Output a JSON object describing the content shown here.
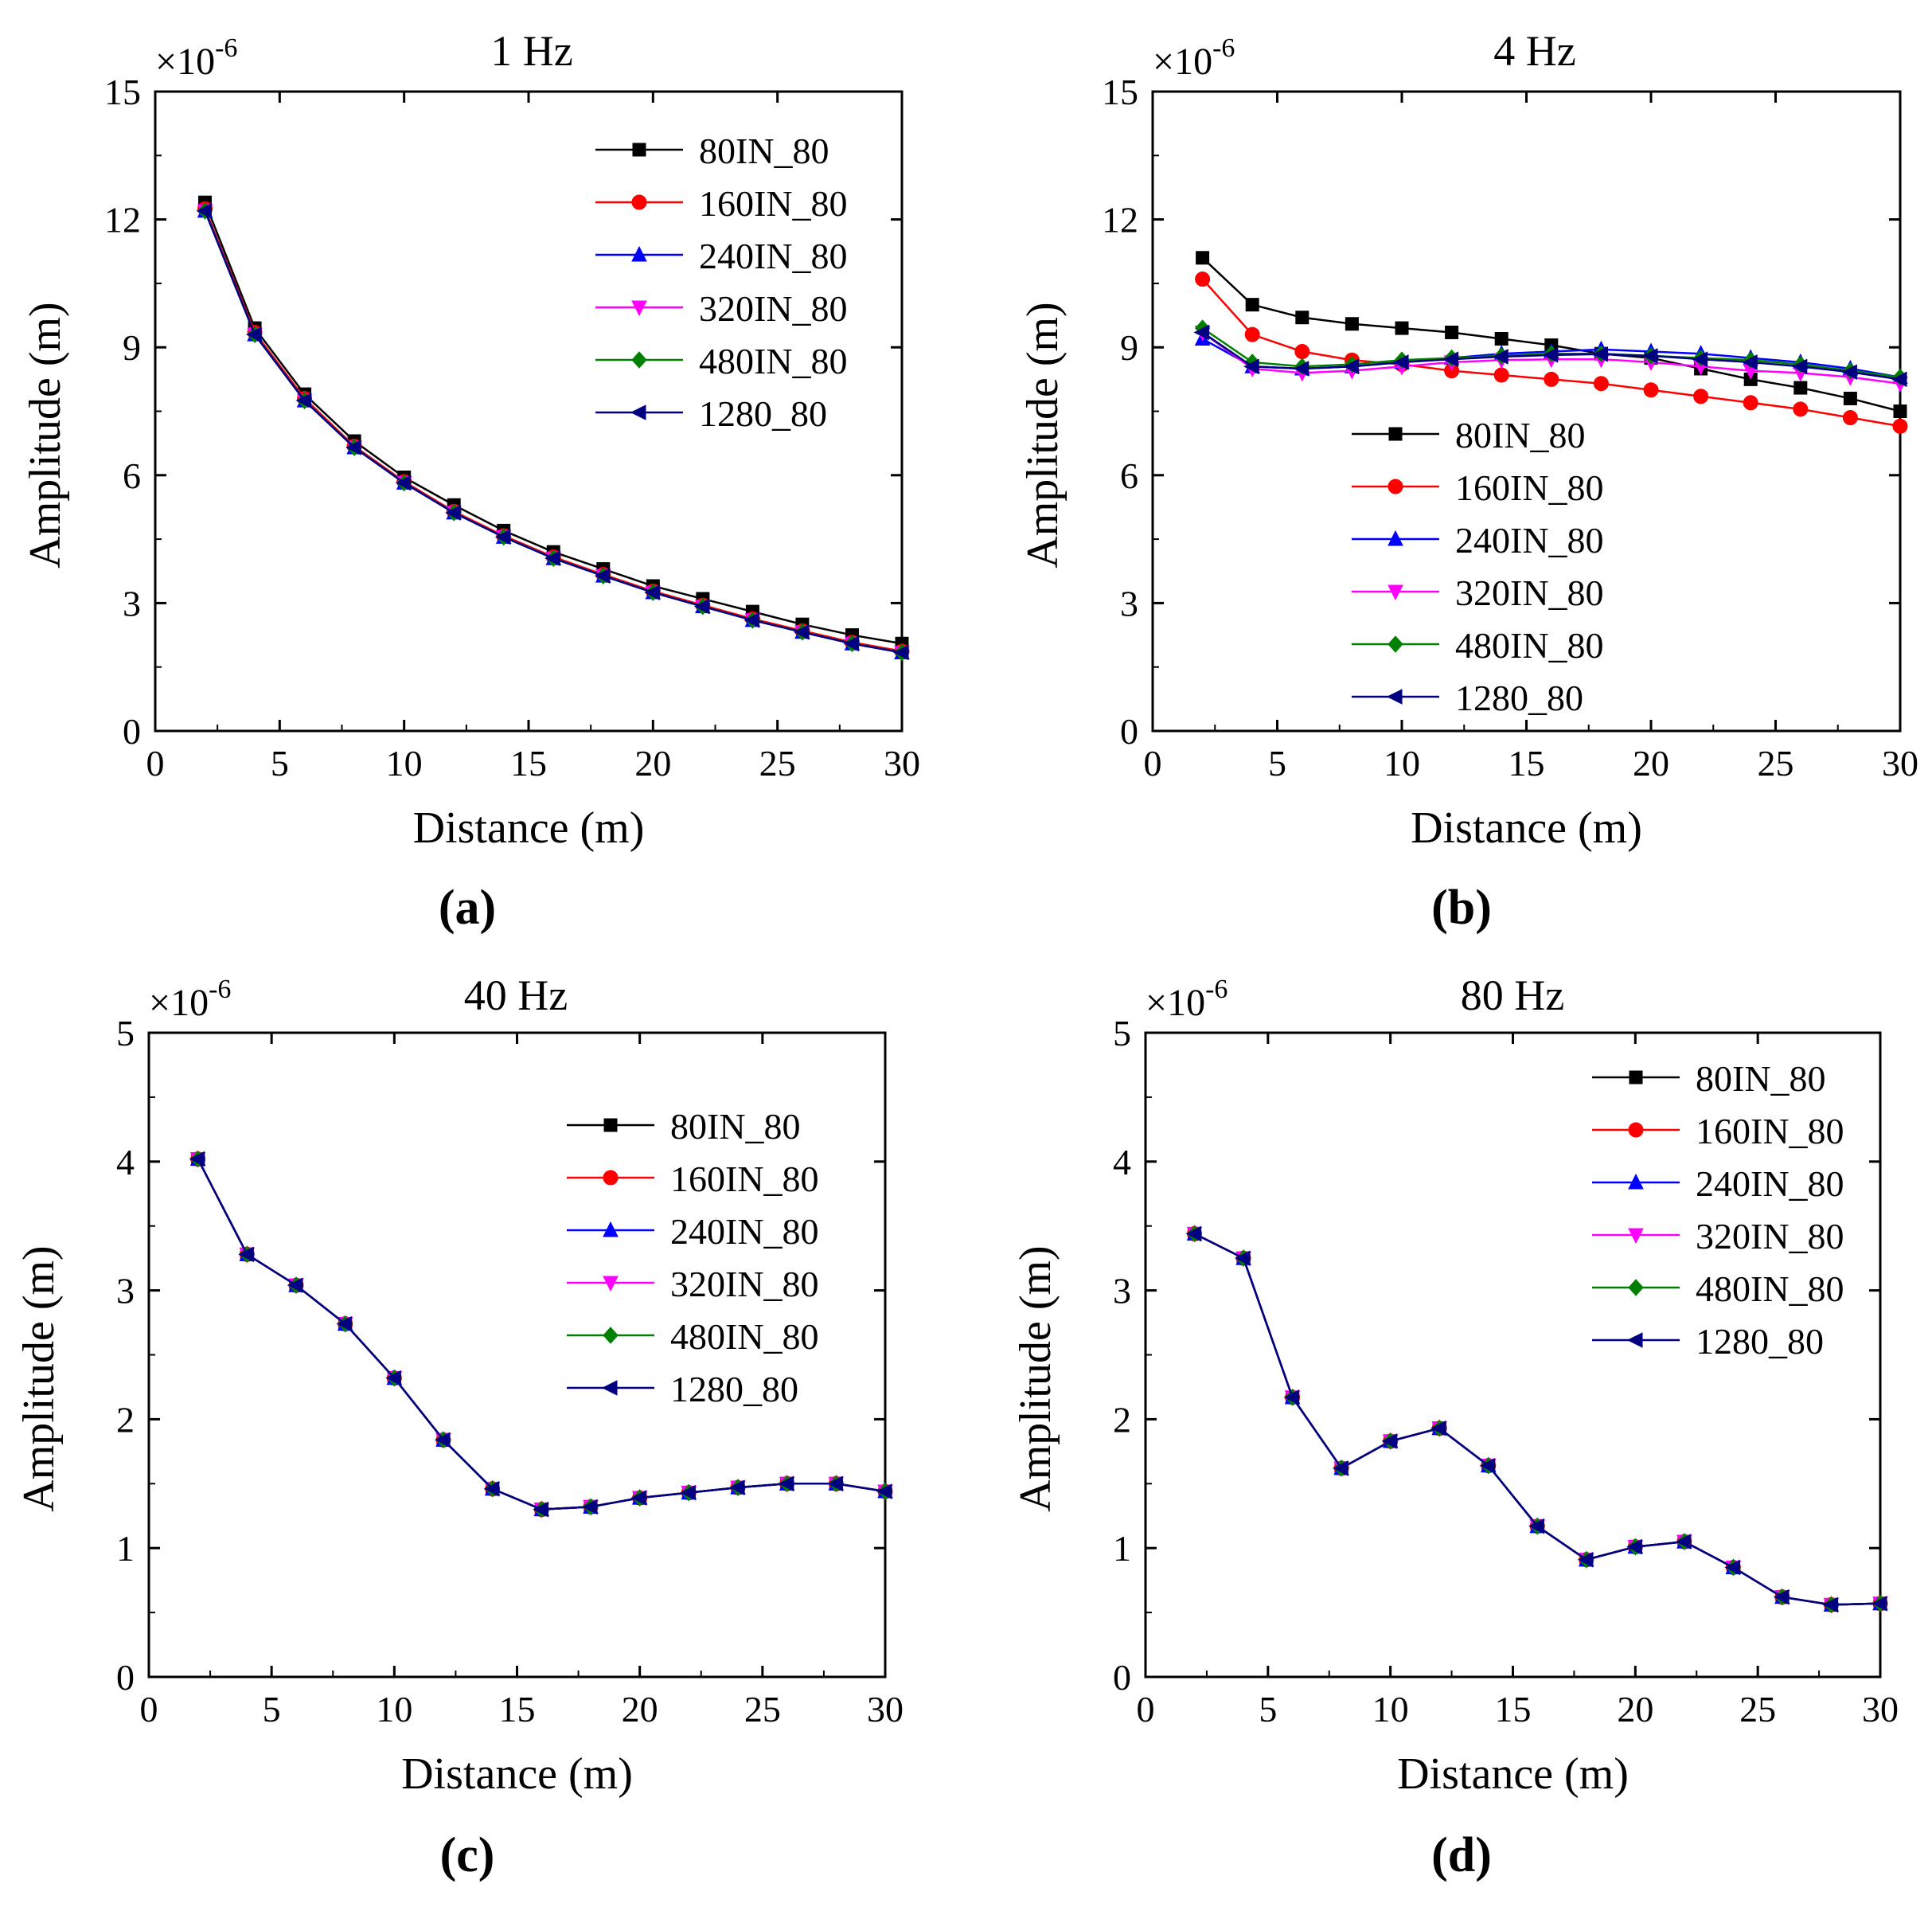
{
  "figure": {
    "panel_labels": [
      "(a)",
      "(b)",
      "(c)",
      "(d)"
    ]
  },
  "colors": {
    "80IN_80": "#000000",
    "160IN_80": "#ff0000",
    "240IN_80": "#0000ff",
    "320IN_80": "#ff00ff",
    "480IN_80": "#008000",
    "1280_80": "#000080"
  },
  "chart_data": [
    {
      "type": "line",
      "panel_label": "(a)",
      "title": "1 Hz",
      "scale_label": "×10",
      "scale_exponent": "-6",
      "xlabel": "Distance (m)",
      "ylabel": "Amplitude (m)",
      "xlim": [
        0,
        30
      ],
      "ylim": [
        0,
        15
      ],
      "xticks": [
        0,
        5,
        10,
        15,
        20,
        25,
        30
      ],
      "yticks": [
        0,
        3,
        6,
        9,
        12,
        15
      ],
      "legend_position": "top-right",
      "x": [
        2,
        4,
        6,
        8,
        10,
        12,
        14,
        16,
        18,
        20,
        22,
        24,
        26,
        28,
        30
      ],
      "series": [
        {
          "name": "80IN_80",
          "marker": "square",
          "values": [
            12.4,
            9.45,
            7.9,
            6.8,
            5.95,
            5.3,
            4.7,
            4.2,
            3.8,
            3.4,
            3.1,
            2.8,
            2.5,
            2.25,
            2.05
          ]
        },
        {
          "name": "160IN_80",
          "marker": "circle",
          "values": [
            12.25,
            9.35,
            7.8,
            6.68,
            5.85,
            5.15,
            4.58,
            4.08,
            3.67,
            3.28,
            2.95,
            2.63,
            2.35,
            2.08,
            1.87
          ]
        },
        {
          "name": "240IN_80",
          "marker": "triangle-up",
          "values": [
            12.2,
            9.3,
            7.75,
            6.65,
            5.82,
            5.12,
            4.55,
            4.05,
            3.64,
            3.25,
            2.92,
            2.6,
            2.32,
            2.05,
            1.84
          ]
        },
        {
          "name": "320IN_80",
          "marker": "triangle-down",
          "values": [
            12.2,
            9.3,
            7.75,
            6.65,
            5.82,
            5.12,
            4.55,
            4.05,
            3.64,
            3.25,
            2.92,
            2.6,
            2.32,
            2.05,
            1.84
          ]
        },
        {
          "name": "480IN_80",
          "marker": "diamond",
          "values": [
            12.2,
            9.3,
            7.75,
            6.65,
            5.82,
            5.12,
            4.55,
            4.05,
            3.64,
            3.25,
            2.92,
            2.6,
            2.32,
            2.05,
            1.84
          ]
        },
        {
          "name": "1280_80",
          "marker": "triangle-left",
          "values": [
            12.2,
            9.3,
            7.75,
            6.65,
            5.82,
            5.12,
            4.55,
            4.05,
            3.64,
            3.25,
            2.92,
            2.6,
            2.32,
            2.05,
            1.84
          ]
        }
      ]
    },
    {
      "type": "line",
      "panel_label": "(b)",
      "title": "4 Hz",
      "scale_label": "×10",
      "scale_exponent": "-6",
      "xlabel": "Distance (m)",
      "ylabel": "Amplitude (m)",
      "xlim": [
        0,
        30
      ],
      "ylim": [
        0,
        15
      ],
      "xticks": [
        0,
        5,
        10,
        15,
        20,
        25,
        30
      ],
      "yticks": [
        0,
        3,
        6,
        9,
        12,
        15
      ],
      "legend_position": "center-left",
      "x": [
        2,
        4,
        6,
        8,
        10,
        12,
        14,
        16,
        18,
        20,
        22,
        24,
        26,
        28,
        30
      ],
      "series": [
        {
          "name": "80IN_80",
          "marker": "square",
          "values": [
            11.1,
            10.0,
            9.7,
            9.55,
            9.45,
            9.35,
            9.2,
            9.05,
            8.85,
            8.75,
            8.5,
            8.25,
            8.05,
            7.8,
            7.5
          ]
        },
        {
          "name": "160IN_80",
          "marker": "circle",
          "values": [
            10.6,
            9.3,
            8.9,
            8.7,
            8.6,
            8.45,
            8.35,
            8.25,
            8.15,
            8.0,
            7.85,
            7.7,
            7.55,
            7.35,
            7.15
          ]
        },
        {
          "name": "240IN_80",
          "marker": "triangle-up",
          "values": [
            9.2,
            8.55,
            8.5,
            8.55,
            8.65,
            8.75,
            8.85,
            8.9,
            8.95,
            8.9,
            8.85,
            8.75,
            8.65,
            8.5,
            8.3
          ]
        },
        {
          "name": "320IN_80",
          "marker": "triangle-down",
          "values": [
            9.35,
            8.5,
            8.4,
            8.45,
            8.55,
            8.65,
            8.7,
            8.72,
            8.72,
            8.65,
            8.55,
            8.45,
            8.4,
            8.3,
            8.15
          ]
        },
        {
          "name": "480IN_80",
          "marker": "diamond",
          "values": [
            9.45,
            8.65,
            8.55,
            8.6,
            8.7,
            8.75,
            8.8,
            8.85,
            8.85,
            8.8,
            8.75,
            8.7,
            8.6,
            8.45,
            8.3
          ]
        },
        {
          "name": "1280_80",
          "marker": "triangle-left",
          "values": [
            9.35,
            8.55,
            8.5,
            8.55,
            8.65,
            8.72,
            8.78,
            8.82,
            8.84,
            8.8,
            8.72,
            8.65,
            8.55,
            8.42,
            8.25
          ]
        }
      ]
    },
    {
      "type": "line",
      "panel_label": "(c)",
      "title": "40 Hz",
      "scale_label": "×10",
      "scale_exponent": "-6",
      "xlabel": "Distance (m)",
      "ylabel": "Amplitude (m)",
      "xlim": [
        0,
        30
      ],
      "ylim": [
        0,
        5
      ],
      "xticks": [
        0,
        5,
        10,
        15,
        20,
        25,
        30
      ],
      "yticks": [
        0,
        1,
        2,
        3,
        4,
        5
      ],
      "legend_position": "top-right",
      "x": [
        2,
        4,
        6,
        8,
        10,
        12,
        14,
        16,
        18,
        20,
        22,
        24,
        26,
        28,
        30
      ],
      "series": [
        {
          "name": "80IN_80",
          "marker": "square",
          "values": [
            4.02,
            3.28,
            3.04,
            2.74,
            2.32,
            1.84,
            1.46,
            1.3,
            1.32,
            1.39,
            1.43,
            1.47,
            1.5,
            1.5,
            1.44
          ]
        },
        {
          "name": "160IN_80",
          "marker": "circle",
          "values": [
            4.02,
            3.28,
            3.04,
            2.74,
            2.32,
            1.84,
            1.46,
            1.3,
            1.32,
            1.39,
            1.43,
            1.47,
            1.5,
            1.5,
            1.44
          ]
        },
        {
          "name": "240IN_80",
          "marker": "triangle-up",
          "values": [
            4.02,
            3.28,
            3.04,
            2.74,
            2.32,
            1.84,
            1.46,
            1.3,
            1.32,
            1.39,
            1.43,
            1.47,
            1.5,
            1.5,
            1.44
          ]
        },
        {
          "name": "320IN_80",
          "marker": "triangle-down",
          "values": [
            4.02,
            3.28,
            3.04,
            2.74,
            2.32,
            1.84,
            1.46,
            1.3,
            1.32,
            1.39,
            1.43,
            1.47,
            1.5,
            1.5,
            1.44
          ]
        },
        {
          "name": "480IN_80",
          "marker": "diamond",
          "values": [
            4.02,
            3.28,
            3.04,
            2.74,
            2.32,
            1.84,
            1.46,
            1.3,
            1.32,
            1.39,
            1.43,
            1.47,
            1.5,
            1.5,
            1.44
          ]
        },
        {
          "name": "1280_80",
          "marker": "triangle-left",
          "values": [
            4.02,
            3.28,
            3.04,
            2.74,
            2.32,
            1.84,
            1.46,
            1.3,
            1.32,
            1.39,
            1.43,
            1.47,
            1.5,
            1.5,
            1.44
          ]
        }
      ]
    },
    {
      "type": "line",
      "panel_label": "(d)",
      "title": "80 Hz",
      "scale_label": "×10",
      "scale_exponent": "-6",
      "xlabel": "Distance (m)",
      "ylabel": "Amplitude (m)",
      "xlim": [
        0,
        30
      ],
      "ylim": [
        0,
        5
      ],
      "xticks": [
        0,
        5,
        10,
        15,
        20,
        25,
        30
      ],
      "yticks": [
        0,
        1,
        2,
        3,
        4,
        5
      ],
      "legend_position": "top-right",
      "x": [
        2,
        4,
        6,
        8,
        10,
        12,
        14,
        16,
        18,
        20,
        22,
        24,
        26,
        28,
        30
      ],
      "series": [
        {
          "name": "80IN_80",
          "marker": "square",
          "values": [
            3.44,
            3.25,
            2.17,
            1.62,
            1.83,
            1.93,
            1.64,
            1.17,
            0.91,
            1.01,
            1.05,
            0.85,
            0.62,
            0.56,
            0.57
          ]
        },
        {
          "name": "160IN_80",
          "marker": "circle",
          "values": [
            3.44,
            3.25,
            2.17,
            1.62,
            1.83,
            1.93,
            1.64,
            1.17,
            0.91,
            1.01,
            1.05,
            0.85,
            0.62,
            0.56,
            0.57
          ]
        },
        {
          "name": "240IN_80",
          "marker": "triangle-up",
          "values": [
            3.44,
            3.25,
            2.17,
            1.62,
            1.83,
            1.93,
            1.64,
            1.17,
            0.91,
            1.01,
            1.05,
            0.85,
            0.62,
            0.56,
            0.57
          ]
        },
        {
          "name": "320IN_80",
          "marker": "triangle-down",
          "values": [
            3.44,
            3.25,
            2.17,
            1.62,
            1.83,
            1.93,
            1.64,
            1.17,
            0.91,
            1.01,
            1.05,
            0.85,
            0.62,
            0.56,
            0.57
          ]
        },
        {
          "name": "480IN_80",
          "marker": "diamond",
          "values": [
            3.44,
            3.25,
            2.17,
            1.62,
            1.83,
            1.93,
            1.64,
            1.17,
            0.91,
            1.01,
            1.05,
            0.85,
            0.62,
            0.56,
            0.57
          ]
        },
        {
          "name": "1280_80",
          "marker": "triangle-left",
          "values": [
            3.44,
            3.25,
            2.17,
            1.62,
            1.83,
            1.93,
            1.64,
            1.17,
            0.91,
            1.01,
            1.05,
            0.85,
            0.62,
            0.56,
            0.57
          ]
        }
      ]
    }
  ]
}
